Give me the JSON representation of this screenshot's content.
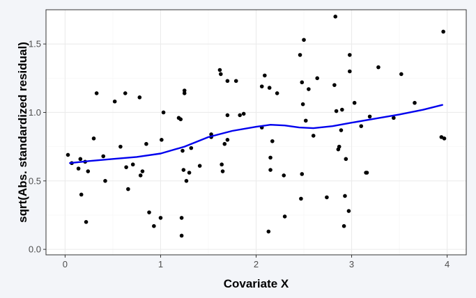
{
  "chart_data": {
    "type": "scatter",
    "title": "",
    "xlabel": "Covariate X",
    "ylabel": "sqrt(Abs. standardized residual)",
    "xlim": [
      -0.2,
      4.2
    ],
    "ylim": [
      -0.04,
      1.75
    ],
    "x_ticks": [
      {
        "value": 0,
        "label": "0"
      },
      {
        "value": 1,
        "label": "1"
      },
      {
        "value": 2,
        "label": "2"
      },
      {
        "value": 3,
        "label": "3"
      },
      {
        "value": 4,
        "label": "4"
      }
    ],
    "y_ticks": [
      {
        "value": 0.0,
        "label": "0.0"
      },
      {
        "value": 0.5,
        "label": "0.5"
      },
      {
        "value": 1.0,
        "label": "1.0"
      },
      {
        "value": 1.5,
        "label": "1.5"
      }
    ],
    "y_minor_ticks": [
      0.25,
      0.75,
      1.25
    ],
    "x_minor_ticks": [
      0.5,
      1.5,
      2.5,
      3.5
    ],
    "grid": true,
    "colors": {
      "panel_background": "#ffffff",
      "page_background": "#f3f5f9",
      "grid_major": "#ebebeb",
      "grid_minor": "#f5f5f5",
      "panel_border": "#333333",
      "points": "#000000",
      "smooth_line": "#0000ee"
    },
    "points": [
      {
        "x": 0.03,
        "y": 0.69
      },
      {
        "x": 0.07,
        "y": 0.63
      },
      {
        "x": 0.14,
        "y": 0.59
      },
      {
        "x": 0.16,
        "y": 0.66
      },
      {
        "x": 0.17,
        "y": 0.4
      },
      {
        "x": 0.21,
        "y": 0.64
      },
      {
        "x": 0.22,
        "y": 0.2
      },
      {
        "x": 0.24,
        "y": 0.57
      },
      {
        "x": 0.3,
        "y": 0.81
      },
      {
        "x": 0.33,
        "y": 1.14
      },
      {
        "x": 0.4,
        "y": 0.68
      },
      {
        "x": 0.42,
        "y": 0.5
      },
      {
        "x": 0.52,
        "y": 1.08
      },
      {
        "x": 0.58,
        "y": 0.75
      },
      {
        "x": 0.63,
        "y": 1.14
      },
      {
        "x": 0.64,
        "y": 0.6
      },
      {
        "x": 0.66,
        "y": 0.44
      },
      {
        "x": 0.71,
        "y": 0.62
      },
      {
        "x": 0.78,
        "y": 1.11
      },
      {
        "x": 0.79,
        "y": 0.54
      },
      {
        "x": 0.81,
        "y": 0.57
      },
      {
        "x": 0.85,
        "y": 0.77
      },
      {
        "x": 0.88,
        "y": 0.27
      },
      {
        "x": 0.93,
        "y": 0.17
      },
      {
        "x": 1.0,
        "y": 0.23
      },
      {
        "x": 1.01,
        "y": 0.8
      },
      {
        "x": 1.03,
        "y": 1.0
      },
      {
        "x": 1.19,
        "y": 0.96
      },
      {
        "x": 1.21,
        "y": 0.95
      },
      {
        "x": 1.22,
        "y": 0.23
      },
      {
        "x": 1.22,
        "y": 0.1
      },
      {
        "x": 1.23,
        "y": 0.72
      },
      {
        "x": 1.24,
        "y": 0.58
      },
      {
        "x": 1.25,
        "y": 1.16
      },
      {
        "x": 1.25,
        "y": 1.14
      },
      {
        "x": 1.27,
        "y": 0.5
      },
      {
        "x": 1.3,
        "y": 0.56
      },
      {
        "x": 1.32,
        "y": 0.74
      },
      {
        "x": 1.41,
        "y": 0.61
      },
      {
        "x": 1.53,
        "y": 0.84
      },
      {
        "x": 1.53,
        "y": 0.82
      },
      {
        "x": 1.62,
        "y": 1.31
      },
      {
        "x": 1.63,
        "y": 1.28
      },
      {
        "x": 1.64,
        "y": 0.62
      },
      {
        "x": 1.65,
        "y": 0.57
      },
      {
        "x": 1.67,
        "y": 0.77
      },
      {
        "x": 1.7,
        "y": 0.98
      },
      {
        "x": 1.7,
        "y": 1.23
      },
      {
        "x": 1.7,
        "y": 0.8
      },
      {
        "x": 1.79,
        "y": 1.23
      },
      {
        "x": 1.83,
        "y": 0.98
      },
      {
        "x": 1.87,
        "y": 0.99
      },
      {
        "x": 2.06,
        "y": 1.19
      },
      {
        "x": 2.06,
        "y": 0.89
      },
      {
        "x": 2.09,
        "y": 1.27
      },
      {
        "x": 2.13,
        "y": 0.13
      },
      {
        "x": 2.14,
        "y": 1.18
      },
      {
        "x": 2.15,
        "y": 0.67
      },
      {
        "x": 2.15,
        "y": 0.58
      },
      {
        "x": 2.17,
        "y": 0.79
      },
      {
        "x": 2.22,
        "y": 1.14
      },
      {
        "x": 2.29,
        "y": 0.54
      },
      {
        "x": 2.3,
        "y": 0.24
      },
      {
        "x": 2.46,
        "y": 1.42
      },
      {
        "x": 2.47,
        "y": 0.37
      },
      {
        "x": 2.48,
        "y": 1.22
      },
      {
        "x": 2.48,
        "y": 0.55
      },
      {
        "x": 2.49,
        "y": 1.06
      },
      {
        "x": 2.5,
        "y": 1.53
      },
      {
        "x": 2.52,
        "y": 0.94
      },
      {
        "x": 2.55,
        "y": 1.17
      },
      {
        "x": 2.6,
        "y": 0.83
      },
      {
        "x": 2.64,
        "y": 1.25
      },
      {
        "x": 2.74,
        "y": 0.38
      },
      {
        "x": 2.82,
        "y": 1.2
      },
      {
        "x": 2.83,
        "y": 1.7
      },
      {
        "x": 2.84,
        "y": 1.01
      },
      {
        "x": 2.86,
        "y": 0.73
      },
      {
        "x": 2.87,
        "y": 0.75
      },
      {
        "x": 2.89,
        "y": 0.87
      },
      {
        "x": 2.9,
        "y": 1.02
      },
      {
        "x": 2.92,
        "y": 0.17
      },
      {
        "x": 2.93,
        "y": 0.39
      },
      {
        "x": 2.94,
        "y": 0.66
      },
      {
        "x": 2.97,
        "y": 0.28
      },
      {
        "x": 2.98,
        "y": 1.42
      },
      {
        "x": 2.98,
        "y": 1.3
      },
      {
        "x": 3.03,
        "y": 1.07
      },
      {
        "x": 3.1,
        "y": 0.9
      },
      {
        "x": 3.15,
        "y": 0.56
      },
      {
        "x": 3.16,
        "y": 0.56
      },
      {
        "x": 3.19,
        "y": 0.97
      },
      {
        "x": 3.28,
        "y": 1.33
      },
      {
        "x": 3.44,
        "y": 0.96
      },
      {
        "x": 3.52,
        "y": 1.28
      },
      {
        "x": 3.66,
        "y": 1.07
      },
      {
        "x": 3.94,
        "y": 0.82
      },
      {
        "x": 3.96,
        "y": 1.59
      },
      {
        "x": 3.97,
        "y": 0.81
      }
    ],
    "smooth_line": [
      {
        "x": 0.05,
        "y": 0.63
      },
      {
        "x": 0.25,
        "y": 0.645
      },
      {
        "x": 0.5,
        "y": 0.66
      },
      {
        "x": 0.75,
        "y": 0.675
      },
      {
        "x": 1.0,
        "y": 0.7
      },
      {
        "x": 1.25,
        "y": 0.75
      },
      {
        "x": 1.5,
        "y": 0.82
      },
      {
        "x": 1.75,
        "y": 0.865
      },
      {
        "x": 2.0,
        "y": 0.895
      },
      {
        "x": 2.15,
        "y": 0.91
      },
      {
        "x": 2.3,
        "y": 0.905
      },
      {
        "x": 2.45,
        "y": 0.89
      },
      {
        "x": 2.6,
        "y": 0.885
      },
      {
        "x": 2.8,
        "y": 0.9
      },
      {
        "x": 3.0,
        "y": 0.925
      },
      {
        "x": 3.25,
        "y": 0.955
      },
      {
        "x": 3.5,
        "y": 0.985
      },
      {
        "x": 3.75,
        "y": 1.02
      },
      {
        "x": 3.95,
        "y": 1.055
      }
    ]
  }
}
